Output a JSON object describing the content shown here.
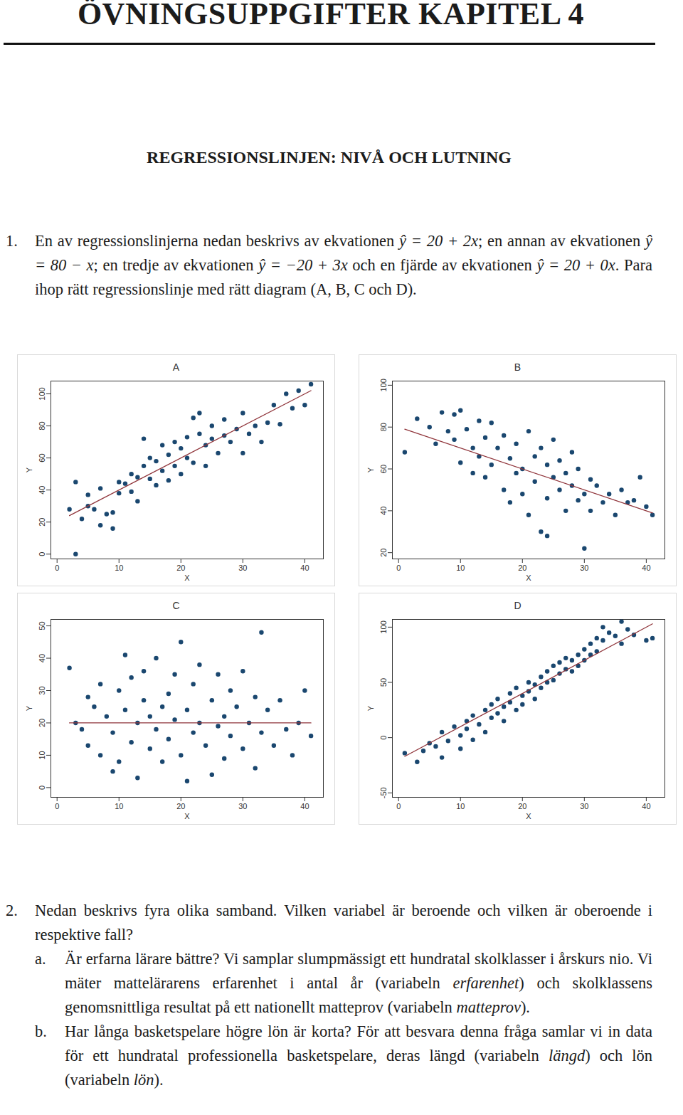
{
  "document": {
    "header": {
      "title": "ÖVNINGSUPPGIFTER KAPITEL 4"
    },
    "section": "REGRESSIONSLINJEN: NIVÅ OCH LUTNING",
    "questions": [
      {
        "number": "1.",
        "runs": [
          {
            "text": "En av regressionslinjerna nedan beskrivs av ekvationen "
          },
          {
            "text": "ŷ = 20 + 2x",
            "math": true
          },
          {
            "text": "; en annan av ekvationen "
          },
          {
            "text": "ŷ = 80 − x",
            "math": true
          },
          {
            "text": "; en tredje av ekvationen "
          },
          {
            "text": "ŷ = −20 + 3x",
            "math": true
          },
          {
            "text": " och en fjärde av ekvationen "
          },
          {
            "text": "ŷ = 20 + 0x",
            "math": true
          },
          {
            "text": ". Para ihop rätt regressionslinje med rätt diagram (A, B, C och D)."
          }
        ]
      },
      {
        "number": "2.",
        "runs": [
          {
            "text": "Nedan beskrivs fyra olika samband. Vilken variabel är beroende och vilken är oberoende i respektive fall?"
          }
        ],
        "items": [
          {
            "label": "a.",
            "runs": [
              {
                "text": "Är erfarna lärare bättre? Vi samplar slumpmässigt ett hundratal skolklasser i årskurs nio. Vi mäter mattelärarens erfarenhet i antal år (variabeln "
              },
              {
                "text": "erfarenhet",
                "italic": true
              },
              {
                "text": ") och skolklassens genomsnittliga resultat på ett nationellt matteprov (variabeln "
              },
              {
                "text": "matteprov",
                "italic": true
              },
              {
                "text": ")."
              }
            ]
          },
          {
            "label": "b.",
            "runs": [
              {
                "text": "Har långa basketspelare högre lön är korta? För att besvara denna fråga samlar vi in data för ett hundratal professionella basketspelare, deras längd (variabeln "
              },
              {
                "text": "längd",
                "italic": true
              },
              {
                "text": ") och lön (variabeln "
              },
              {
                "text": "lön",
                "italic": true
              },
              {
                "text": ")."
              }
            ]
          }
        ]
      }
    ]
  },
  "chart_data": [
    {
      "type": "scatter",
      "title": "A",
      "x_label": "X",
      "y_label": "Y",
      "color": "#1a476f",
      "xlim": [
        -1,
        43
      ],
      "xticks": [
        0,
        10,
        20,
        30,
        40
      ],
      "ylim": [
        -3,
        108
      ],
      "yticks": [
        0,
        20,
        40,
        60,
        80,
        100
      ],
      "grid": false,
      "x": [
        2,
        3,
        3,
        4,
        5,
        5,
        6,
        7,
        8,
        9,
        10,
        10,
        11,
        12,
        12,
        13,
        13,
        14,
        15,
        15,
        16,
        16,
        17,
        17,
        18,
        18,
        19,
        19,
        20,
        20,
        21,
        21,
        22,
        22,
        23,
        24,
        24,
        25,
        25,
        26,
        27,
        27,
        28,
        29,
        30,
        30,
        31,
        32,
        33,
        35,
        36,
        37,
        38,
        39,
        41,
        40,
        34,
        23,
        14,
        7,
        9
      ],
      "values": [
        28,
        0,
        45,
        22,
        37,
        30,
        28,
        41,
        25,
        16,
        38,
        45,
        44,
        39,
        50,
        33,
        48,
        55,
        47,
        60,
        43,
        58,
        52,
        68,
        62,
        46,
        70,
        55,
        66,
        50,
        73,
        60,
        85,
        57,
        75,
        68,
        55,
        80,
        72,
        63,
        84,
        74,
        70,
        78,
        63,
        88,
        75,
        80,
        70,
        93,
        81,
        100,
        91,
        102,
        106,
        93,
        82,
        88,
        72,
        18,
        26
      ],
      "regression": {
        "intercept": 20,
        "slope": 2,
        "color": "#90353b"
      }
    },
    {
      "type": "scatter",
      "title": "B",
      "x_label": "X",
      "y_label": "Y",
      "color": "#1a476f",
      "xlim": [
        -1,
        43
      ],
      "xticks": [
        0,
        10,
        20,
        30,
        40
      ],
      "ylim": [
        17,
        102
      ],
      "yticks": [
        20,
        40,
        60,
        80,
        100
      ],
      "grid": false,
      "x": [
        1,
        3,
        5,
        6,
        7,
        8,
        9,
        9,
        10,
        10,
        11,
        12,
        12,
        13,
        13,
        14,
        14,
        15,
        15,
        16,
        17,
        17,
        18,
        18,
        19,
        19,
        20,
        20,
        21,
        21,
        22,
        22,
        23,
        23,
        24,
        24,
        25,
        25,
        26,
        26,
        27,
        27,
        28,
        28,
        29,
        29,
        30,
        30,
        31,
        31,
        32,
        33,
        34,
        35,
        36,
        37,
        38,
        39,
        40,
        41,
        24
      ],
      "values": [
        68,
        84,
        80,
        72,
        87,
        78,
        74,
        86,
        88,
        63,
        79,
        70,
        58,
        83,
        66,
        75,
        56,
        62,
        82,
        70,
        50,
        76,
        65,
        44,
        72,
        58,
        60,
        48,
        78,
        38,
        66,
        54,
        30,
        70,
        62,
        46,
        56,
        74,
        50,
        64,
        40,
        58,
        68,
        52,
        60,
        45,
        48,
        22,
        55,
        40,
        52,
        44,
        48,
        38,
        50,
        44,
        45,
        56,
        42,
        38,
        28
      ],
      "regression": {
        "intercept": 80,
        "slope": -1,
        "color": "#90353b"
      }
    },
    {
      "type": "scatter",
      "title": "C",
      "x_label": "X",
      "y_label": "Y",
      "color": "#1a476f",
      "xlim": [
        -1,
        43
      ],
      "xticks": [
        0,
        10,
        20,
        30,
        40
      ],
      "ylim": [
        -3,
        52
      ],
      "yticks": [
        0,
        10,
        20,
        30,
        40,
        50
      ],
      "grid": false,
      "x": [
        2,
        3,
        4,
        5,
        5,
        6,
        7,
        7,
        8,
        9,
        9,
        10,
        10,
        11,
        11,
        12,
        12,
        13,
        13,
        14,
        14,
        15,
        15,
        16,
        16,
        17,
        17,
        18,
        18,
        19,
        19,
        20,
        20,
        21,
        21,
        22,
        22,
        23,
        23,
        24,
        25,
        25,
        26,
        26,
        27,
        27,
        28,
        28,
        29,
        30,
        30,
        31,
        32,
        32,
        33,
        33,
        34,
        35,
        36,
        37,
        38,
        39,
        40,
        41
      ],
      "values": [
        37,
        20,
        18,
        13,
        28,
        25,
        10,
        32,
        22,
        5,
        17,
        30,
        8,
        24,
        41,
        14,
        34,
        20,
        3,
        27,
        36,
        22,
        12,
        40,
        18,
        25,
        8,
        29,
        15,
        21,
        35,
        45,
        10,
        24,
        2,
        32,
        17,
        20,
        38,
        13,
        27,
        4,
        35,
        19,
        22,
        9,
        30,
        16,
        25,
        36,
        12,
        20,
        28,
        6,
        48,
        17,
        24,
        13,
        27,
        18,
        10,
        20,
        30,
        16
      ],
      "regression": {
        "intercept": 20,
        "slope": 0,
        "color": "#90353b"
      }
    },
    {
      "type": "scatter",
      "title": "D",
      "x_label": "X",
      "y_label": "Y",
      "color": "#1a476f",
      "xlim": [
        -1,
        43
      ],
      "xticks": [
        0,
        10,
        20,
        30,
        40
      ],
      "ylim": [
        -54,
        107
      ],
      "yticks": [
        -50,
        0,
        50,
        100
      ],
      "grid": false,
      "x": [
        1,
        3,
        4,
        5,
        6,
        7,
        7,
        8,
        9,
        10,
        10,
        11,
        11,
        12,
        12,
        13,
        14,
        14,
        15,
        15,
        16,
        16,
        17,
        17,
        18,
        18,
        19,
        19,
        20,
        20,
        21,
        21,
        22,
        22,
        23,
        23,
        24,
        24,
        25,
        25,
        26,
        26,
        27,
        27,
        28,
        28,
        29,
        29,
        30,
        30,
        31,
        31,
        32,
        32,
        33,
        34,
        35,
        36,
        37,
        38,
        40,
        41,
        33,
        36
      ],
      "values": [
        -14,
        -22,
        -12,
        -5,
        -8,
        -18,
        5,
        -3,
        10,
        2,
        -10,
        15,
        8,
        -2,
        20,
        12,
        25,
        5,
        18,
        30,
        22,
        35,
        28,
        15,
        40,
        32,
        25,
        45,
        38,
        30,
        50,
        42,
        48,
        35,
        55,
        45,
        60,
        50,
        52,
        65,
        58,
        68,
        62,
        72,
        70,
        60,
        75,
        65,
        80,
        70,
        85,
        75,
        90,
        78,
        88,
        95,
        92,
        85,
        98,
        93,
        88,
        90,
        100,
        105
      ],
      "regression": {
        "intercept": -20,
        "slope": 3,
        "color": "#90353b"
      }
    }
  ]
}
